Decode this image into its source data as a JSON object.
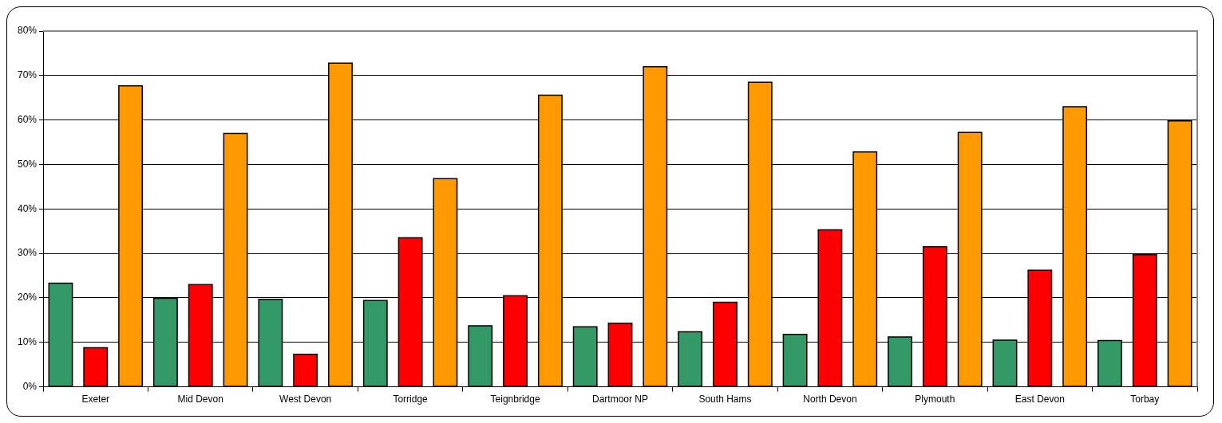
{
  "chart_data": {
    "type": "bar",
    "categories": [
      "Exeter",
      "Mid Devon",
      "West Devon",
      "Torridge",
      "Teignbridge",
      "Dartmoor NP",
      "South Hams",
      "North Devon",
      "Plymouth",
      "East Devon",
      "Torbay"
    ],
    "series": [
      {
        "color": "#339966",
        "values": [
          23.3,
          19.9,
          19.7,
          19.4,
          13.7,
          13.5,
          12.4,
          11.8,
          11.2,
          10.5,
          10.4
        ]
      },
      {
        "color": "#ff0000",
        "values": [
          8.8,
          23.0,
          7.3,
          33.5,
          20.5,
          14.3,
          19.0,
          35.3,
          31.5,
          26.2,
          29.7
        ]
      },
      {
        "color": "#ff9900",
        "values": [
          67.7,
          57.0,
          72.8,
          46.8,
          65.6,
          72.0,
          68.5,
          52.8,
          57.2,
          63.0,
          59.8
        ]
      }
    ],
    "ylim": [
      0,
      80
    ],
    "yticks": [
      {
        "value": 0,
        "label": "0%"
      },
      {
        "value": 10,
        "label": "10%"
      },
      {
        "value": 20,
        "label": "20%"
      },
      {
        "value": 30,
        "label": "30%"
      },
      {
        "value": 40,
        "label": "40%"
      },
      {
        "value": 50,
        "label": "50%"
      },
      {
        "value": 60,
        "label": "60%"
      },
      {
        "value": 70,
        "label": "70%"
      },
      {
        "value": 80,
        "label": "80%"
      }
    ],
    "grid": "y",
    "legend": false
  }
}
